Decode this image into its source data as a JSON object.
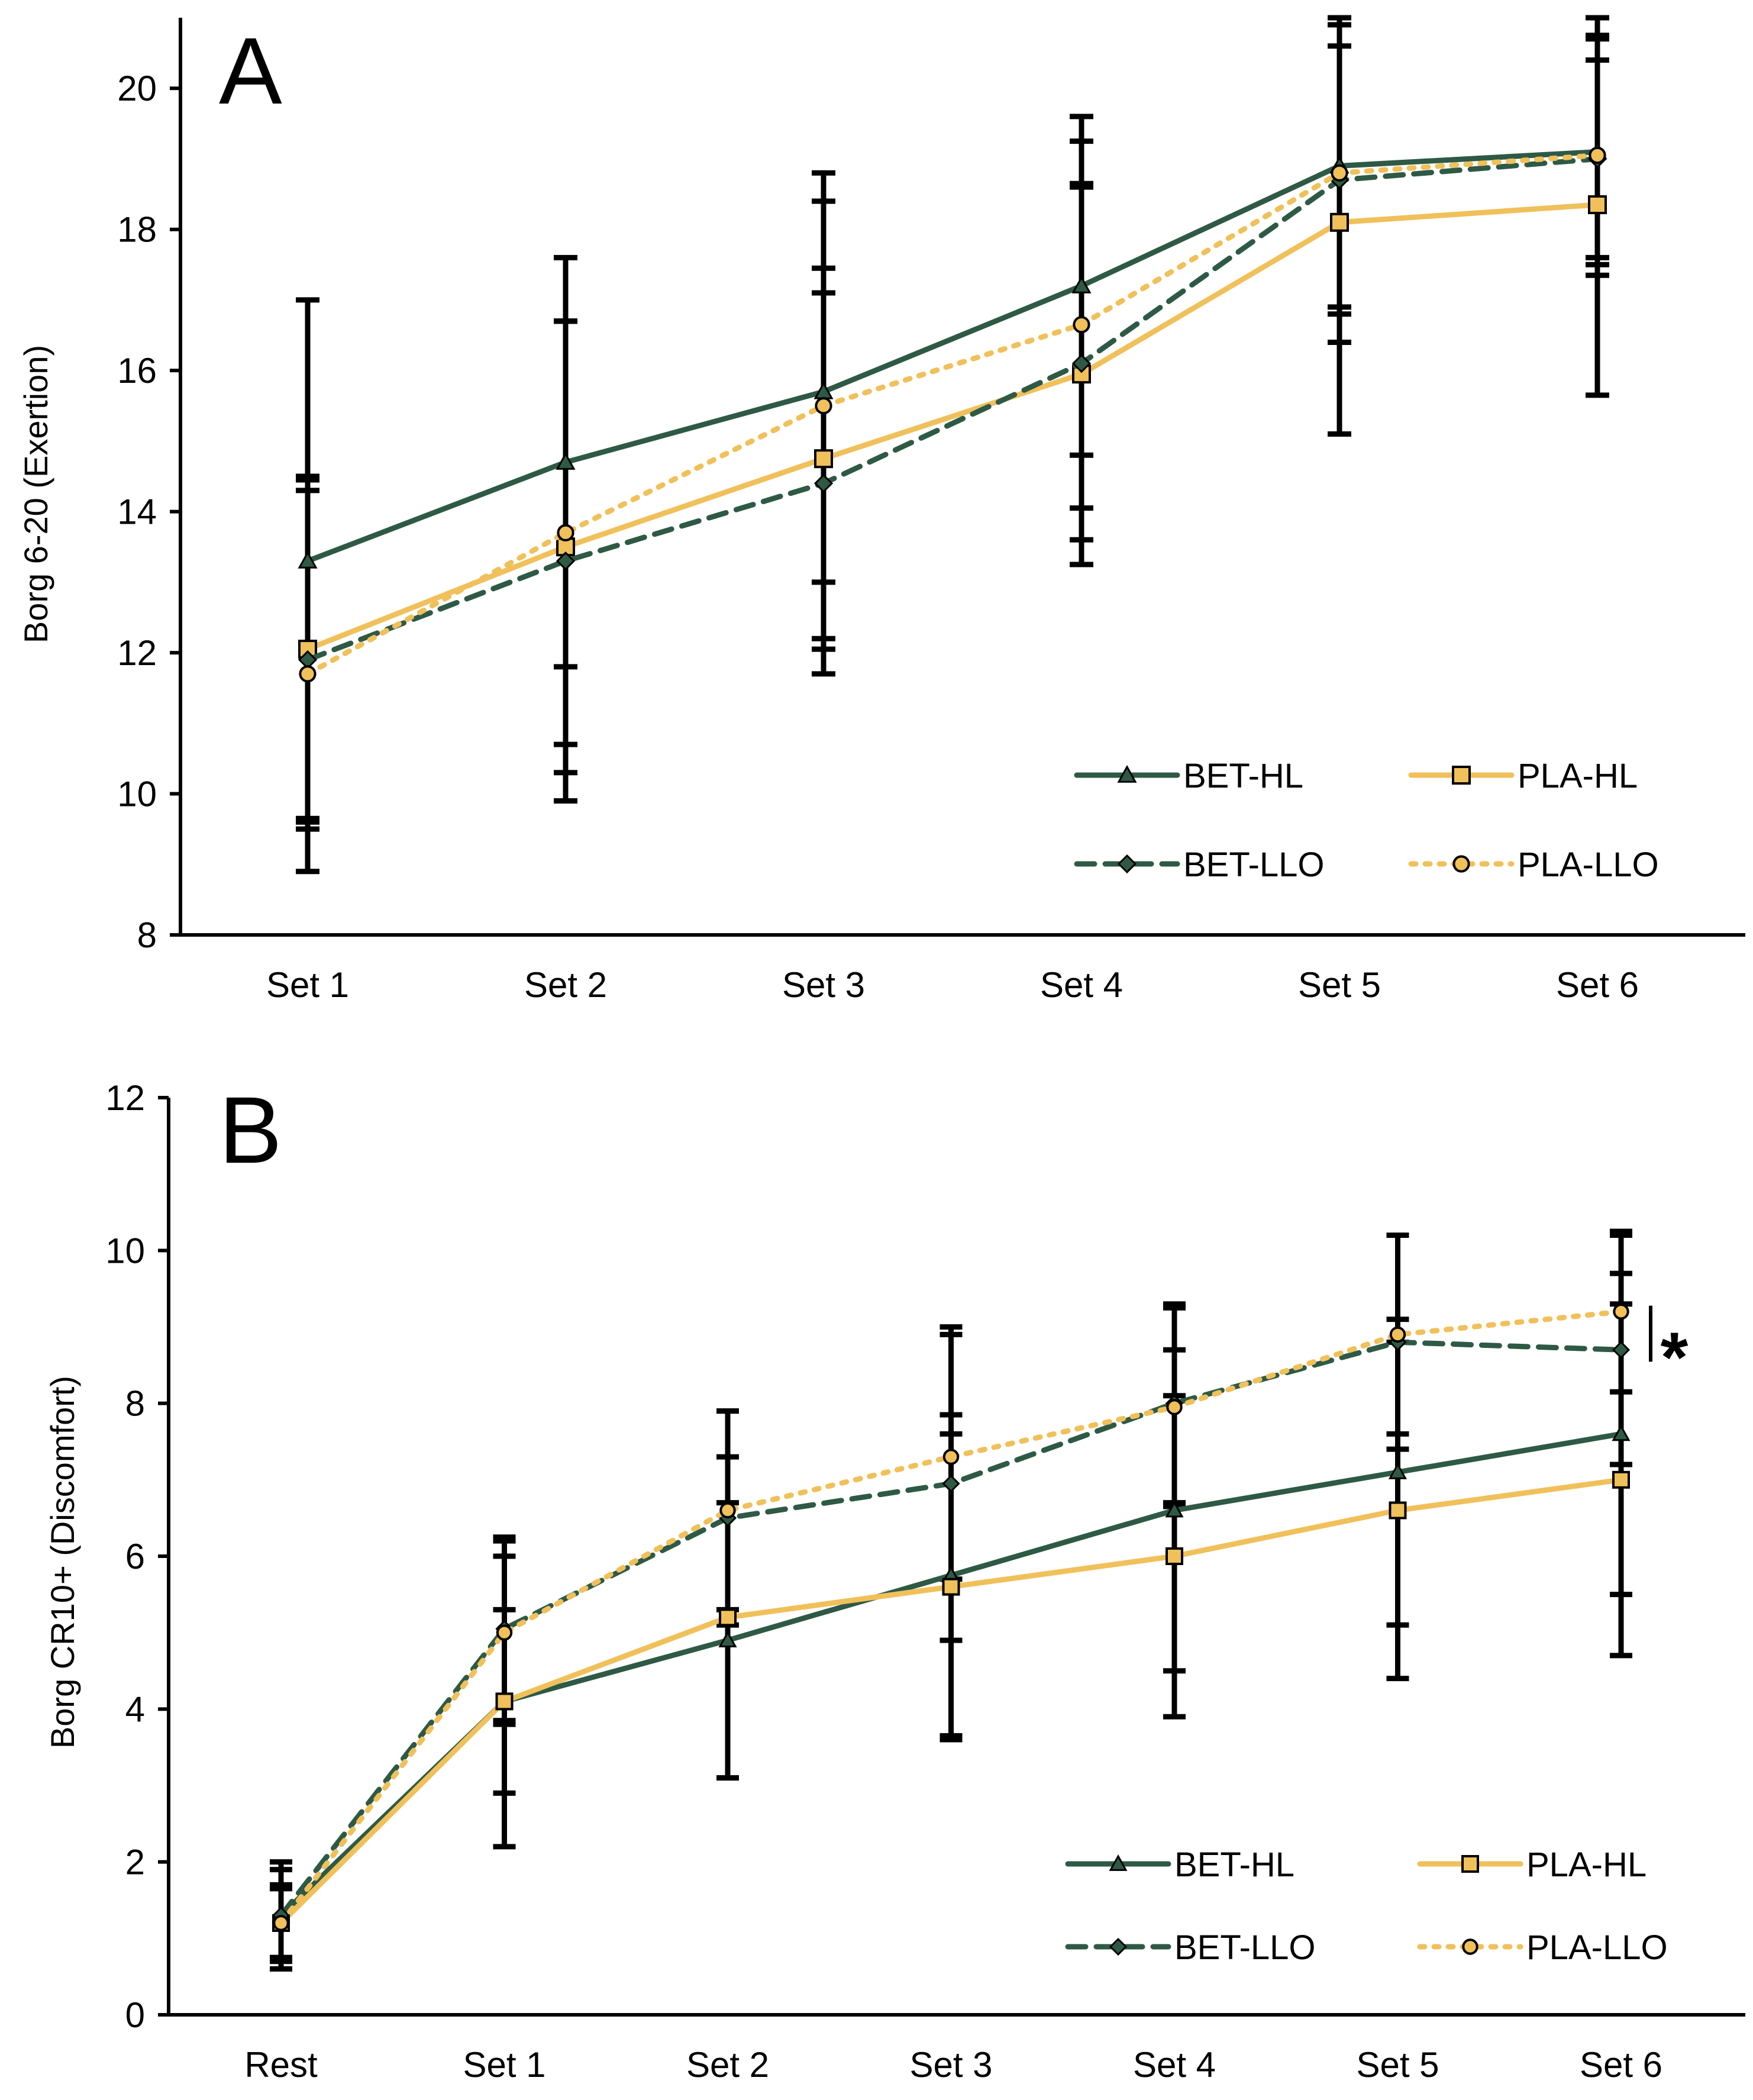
{
  "colors": {
    "bet": "#2e5a45",
    "pla": "#f0c05a",
    "marker_fill_gold": "#f0c05a",
    "errorbar": "#000000"
  },
  "chart_data": [
    {
      "type": "line",
      "panel": "A",
      "title": "",
      "xlabel": "",
      "ylabel": "Borg 6-20 (Exertion)",
      "ylim": [
        8,
        21
      ],
      "yticks": [
        8,
        10,
        12,
        14,
        16,
        18,
        20
      ],
      "grid": false,
      "legend_position": "bottom-right",
      "categories": [
        "Set 1",
        "Set 2",
        "Set 3",
        "Set 4",
        "Set 5",
        "Set 6"
      ],
      "series": [
        {
          "name": "BET-HL",
          "style": "solid",
          "marker": "triangle",
          "values": [
            13.3,
            14.7,
            15.7,
            17.2,
            18.9,
            19.1
          ],
          "errors": [
            3.7,
            2.9,
            2.7,
            2.4,
            2.0,
            1.6
          ]
        },
        {
          "name": "PLA-HL",
          "style": "solid",
          "marker": "square",
          "values": [
            12.05,
            13.5,
            14.75,
            15.95,
            18.1,
            18.35
          ],
          "errors": [
            2.4,
            3.2,
            2.7,
            2.7,
            3.0,
            2.7
          ]
        },
        {
          "name": "BET-LLO",
          "style": "dashed",
          "marker": "diamond",
          "values": [
            11.9,
            13.3,
            14.4,
            16.1,
            18.7,
            19.0
          ],
          "errors": [
            2.4,
            3.4,
            2.7,
            2.5,
            1.9,
            1.4
          ]
        },
        {
          "name": "PLA-LLO",
          "style": "dotted",
          "marker": "circle",
          "values": [
            11.7,
            13.7,
            15.5,
            16.65,
            18.8,
            19.05
          ],
          "errors": [
            2.8,
            3.0,
            3.3,
            2.6,
            2.4,
            1.7
          ]
        }
      ]
    },
    {
      "type": "line",
      "panel": "B",
      "title": "",
      "xlabel": "",
      "ylabel": "Borg CR10+ (Discomfort)",
      "ylim": [
        0,
        12
      ],
      "yticks": [
        0,
        2,
        4,
        6,
        8,
        10,
        12
      ],
      "grid": false,
      "legend_position": "bottom-right",
      "annotation": "*",
      "categories": [
        "Rest",
        "Set 1",
        "Set 2",
        "Set 3",
        "Set 4",
        "Set 5",
        "Set 6"
      ],
      "series": [
        {
          "name": "BET-HL",
          "style": "solid",
          "marker": "triangle",
          "values": [
            1.3,
            4.1,
            4.9,
            5.75,
            6.6,
            7.1,
            7.6
          ],
          "errors": [
            0.6,
            1.2,
            1.8,
            2.1,
            2.1,
            2.0,
            2.1
          ]
        },
        {
          "name": "PLA-HL",
          "style": "solid",
          "marker": "square",
          "values": [
            1.2,
            4.1,
            5.2,
            5.6,
            6.0,
            6.6,
            7.0
          ],
          "errors": [
            0.5,
            1.9,
            2.1,
            2.0,
            2.1,
            2.2,
            2.3
          ]
        },
        {
          "name": "BET-LLO",
          "style": "dashed",
          "marker": "diamond",
          "values": [
            1.3,
            5.05,
            6.5,
            6.95,
            8.0,
            8.8,
            8.7
          ],
          "errors": [
            0.7,
            1.2,
            1.4,
            2.05,
            1.3,
            1.4,
            1.5
          ]
        },
        {
          "name": "PLA-LLO",
          "style": "dotted",
          "marker": "circle",
          "values": [
            1.2,
            5.0,
            6.6,
            7.3,
            7.95,
            8.9,
            9.2
          ],
          "errors": [
            0.45,
            1.2,
            1.3,
            1.6,
            1.3,
            1.3,
            1.05
          ]
        }
      ]
    }
  ]
}
